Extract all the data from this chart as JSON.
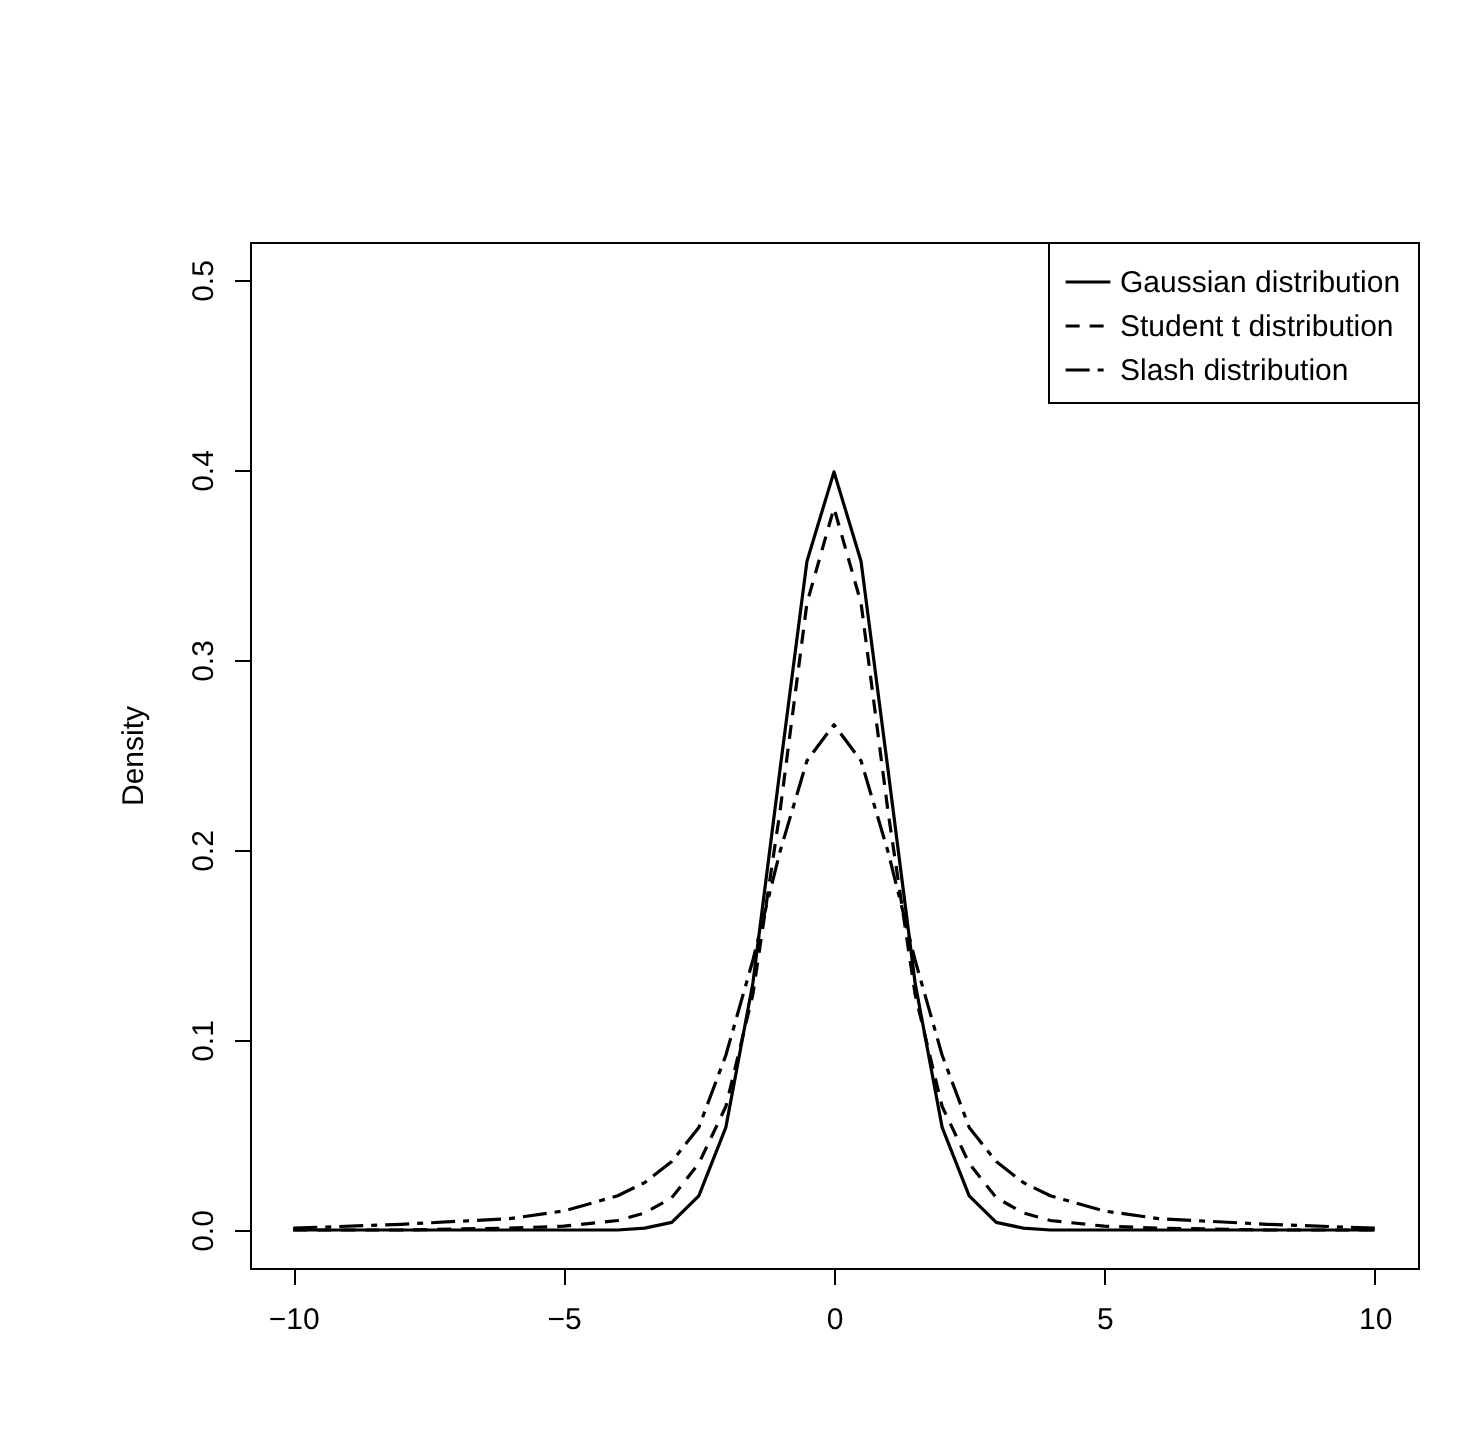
{
  "chart_data": {
    "type": "line",
    "ylabel": "Density",
    "x": [
      -10,
      -8,
      -6,
      -5,
      -4,
      -3.5,
      -3,
      -2.5,
      -2,
      -1.5,
      -1,
      -0.5,
      0,
      0.5,
      1,
      1.5,
      2,
      2.5,
      3,
      3.5,
      4,
      5,
      6,
      8,
      10
    ],
    "series": [
      {
        "name": "Gaussian distribution",
        "color": "#000000",
        "line_style": "solid",
        "values": [
          0,
          0,
          0,
          0,
          0,
          0.001,
          0.004,
          0.018,
          0.054,
          0.13,
          0.242,
          0.352,
          0.399,
          0.352,
          0.242,
          0.13,
          0.054,
          0.018,
          0.004,
          0.001,
          0,
          0,
          0,
          0,
          0
        ]
      },
      {
        "name": "Student t distribution",
        "color": "#000000",
        "line_style": "dashed",
        "values": [
          0,
          0,
          0.001,
          0.002,
          0.005,
          0.009,
          0.017,
          0.035,
          0.065,
          0.124,
          0.22,
          0.33,
          0.38,
          0.33,
          0.22,
          0.124,
          0.065,
          0.035,
          0.017,
          0.009,
          0.005,
          0.002,
          0.001,
          0,
          0
        ]
      },
      {
        "name": "Slash distribution",
        "color": "#000000",
        "line_style": "dashdot",
        "values": [
          0.001,
          0.003,
          0.006,
          0.01,
          0.018,
          0.025,
          0.036,
          0.054,
          0.092,
          0.142,
          0.199,
          0.247,
          0.266,
          0.247,
          0.199,
          0.142,
          0.092,
          0.054,
          0.036,
          0.025,
          0.018,
          0.01,
          0.006,
          0.003,
          0.001
        ]
      }
    ],
    "xlim": [
      -10.8,
      10.8
    ],
    "xticks": [
      -10,
      -5,
      0,
      5,
      10
    ],
    "ylim": [
      -0.02,
      0.52
    ],
    "yticks": [
      {
        "value": 0,
        "label": "0.0"
      },
      0.1,
      0.2,
      0.3,
      0.4,
      0.5
    ],
    "grid": false,
    "legend": "top right",
    "marker": "none"
  }
}
